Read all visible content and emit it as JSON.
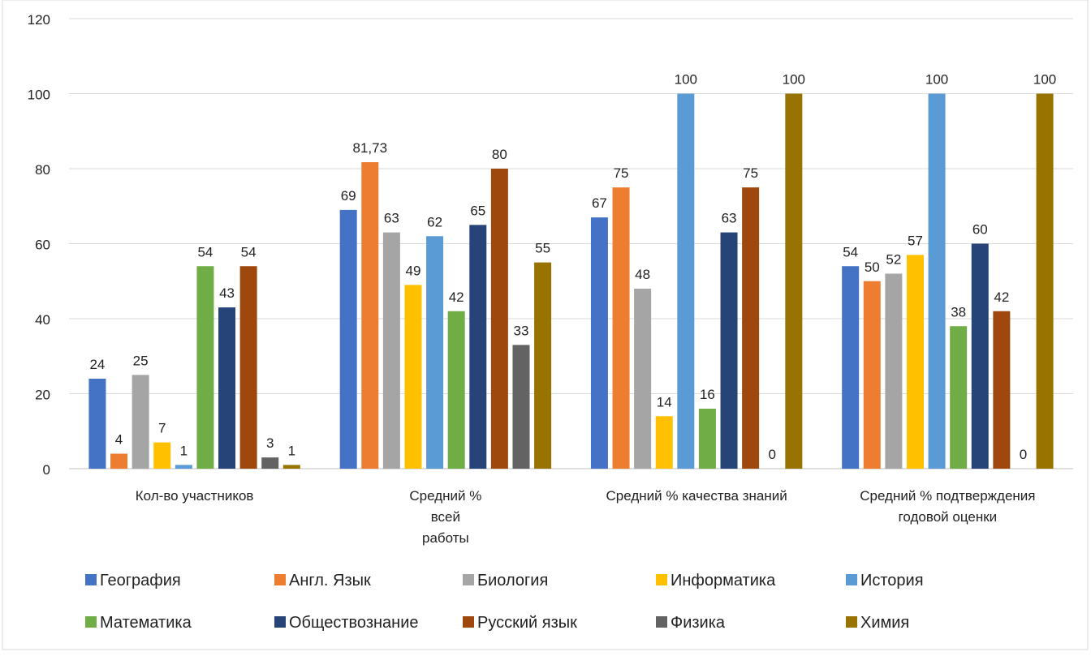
{
  "chart_data": {
    "type": "bar",
    "title": "",
    "xlabel": "",
    "ylabel": "",
    "ylim": [
      0,
      120
    ],
    "yticks": [
      0,
      20,
      40,
      60,
      80,
      100,
      120
    ],
    "grid": true,
    "legend_position": "bottom",
    "categories": [
      [
        "Кол-во участников"
      ],
      [
        "Средний  %",
        "всей",
        "работы"
      ],
      [
        "Средний % качества знаний"
      ],
      [
        "Средний % подтверждения",
        "годовой оценки"
      ]
    ],
    "series": [
      {
        "name": "География",
        "color": "#4472C4",
        "values": [
          24,
          69,
          67,
          54
        ],
        "labels": [
          "24",
          "69",
          "67",
          "54"
        ]
      },
      {
        "name": "Англ. Язык",
        "color": "#ED7D31",
        "values": [
          4,
          81.73,
          75,
          50
        ],
        "labels": [
          "4",
          "81,73",
          "75",
          "50"
        ]
      },
      {
        "name": "Биология",
        "color": "#A5A5A5",
        "values": [
          25,
          63,
          48,
          52
        ],
        "labels": [
          "25",
          "63",
          "48",
          "52"
        ]
      },
      {
        "name": "Информатика",
        "color": "#FFC000",
        "values": [
          7,
          49,
          14,
          57
        ],
        "labels": [
          "7",
          "49",
          "14",
          "57"
        ]
      },
      {
        "name": "История",
        "color": "#5B9BD5",
        "values": [
          1,
          62,
          100,
          100
        ],
        "labels": [
          "1",
          "62",
          "100",
          "100"
        ]
      },
      {
        "name": "Математика",
        "color": "#70AD47",
        "values": [
          54,
          42,
          16,
          38
        ],
        "labels": [
          "54",
          "42",
          "16",
          "38"
        ]
      },
      {
        "name": "Обществознание",
        "color": "#264478",
        "values": [
          43,
          65,
          63,
          60
        ],
        "labels": [
          "43",
          "65",
          "63",
          "60"
        ]
      },
      {
        "name": "Русский язык",
        "color": "#9E480E",
        "values": [
          54,
          80,
          75,
          42
        ],
        "labels": [
          "54",
          "80",
          "75",
          "42"
        ]
      },
      {
        "name": "Физика",
        "color": "#636363",
        "values": [
          3,
          33,
          0,
          0
        ],
        "labels": [
          "3",
          "33",
          "0",
          "0"
        ]
      },
      {
        "name": "Химия",
        "color": "#997300",
        "values": [
          1,
          55,
          100,
          100
        ],
        "labels": [
          "1",
          "55",
          "100",
          "100"
        ]
      }
    ]
  }
}
